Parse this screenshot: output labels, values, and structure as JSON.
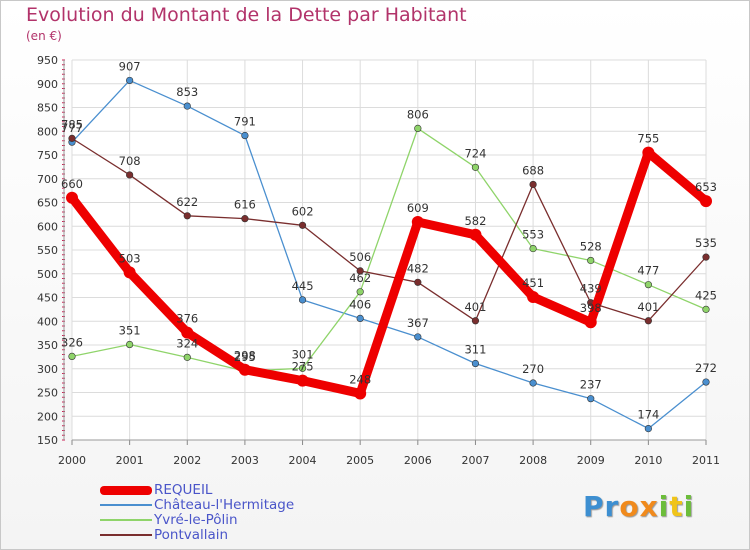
{
  "chart_data": {
    "type": "line",
    "title": "Evolution du Montant de la Dette par Habitant",
    "subtitle": "(en €)",
    "x": [
      "2000",
      "2001",
      "2002",
      "2003",
      "2004",
      "2005",
      "2006",
      "2007",
      "2008",
      "2009",
      "2010",
      "2011"
    ],
    "ylim": [
      150,
      950
    ],
    "yticks": [
      150,
      200,
      250,
      300,
      350,
      400,
      450,
      500,
      550,
      600,
      650,
      700,
      750,
      800,
      850,
      900,
      950
    ],
    "grid": true,
    "legend_position": "bottom-left",
    "series": [
      {
        "name": "REQUEIL",
        "color": "#ee0000",
        "values": [
          660,
          503,
          376,
          298,
          275,
          248,
          609,
          582,
          451,
          398,
          755,
          653
        ]
      },
      {
        "name": "Château-l'Hermitage",
        "color": "#4a8fcf",
        "values": [
          777,
          907,
          853,
          791,
          445,
          406,
          367,
          311,
          270,
          237,
          174,
          272
        ]
      },
      {
        "name": "Yvré-le-Pôlin",
        "color": "#8fd46a",
        "values": [
          326,
          351,
          324,
          295,
          301,
          462,
          806,
          724,
          553,
          528,
          477,
          425
        ]
      },
      {
        "name": "Pontvallain",
        "color": "#7a2e2e",
        "values": [
          785,
          708,
          622,
          616,
          602,
          506,
          482,
          401,
          688,
          439,
          401,
          535
        ]
      }
    ]
  },
  "logo": {
    "letters": [
      "P",
      "r",
      "o",
      "x",
      "i",
      "t",
      "i"
    ],
    "colors": [
      "#3d8fd1",
      "#3d8fd1",
      "#f08a1c",
      "#f08a1c",
      "#6cbd3a",
      "#f0c419",
      "#6cbd3a"
    ]
  }
}
